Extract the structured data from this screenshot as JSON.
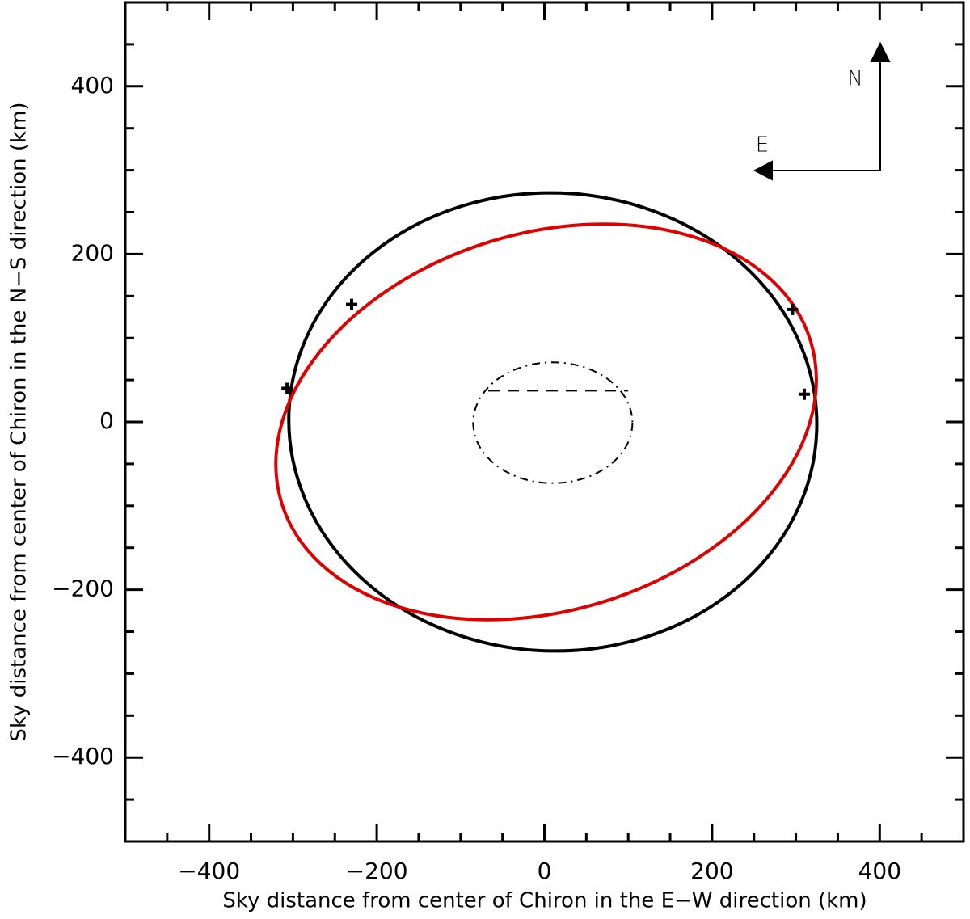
{
  "chart_data": {
    "type": "ellipse",
    "xlabel": "Sky distance from center of Chiron in the E−W direction (km)",
    "ylabel": "Sky distance from center of Chiron in the N−S direction (km)",
    "xlim": [
      -500,
      500
    ],
    "ylim": [
      -500,
      500
    ],
    "xticks": [
      {
        "value": -400,
        "label": "−400"
      },
      {
        "value": -200,
        "label": "−200"
      },
      0,
      200,
      400
    ],
    "yticks": [
      {
        "value": -400,
        "label": "−400"
      },
      {
        "value": -200,
        "label": "−200"
      },
      0,
      200,
      400
    ],
    "xminorticks": [
      -450,
      -350,
      -300,
      -250,
      -150,
      -100,
      -50,
      50,
      100,
      150,
      250,
      300,
      350,
      450
    ],
    "yminorticks": [
      -450,
      -350,
      -300,
      -250,
      -150,
      -100,
      -50,
      50,
      100,
      150,
      250,
      300,
      350,
      450
    ],
    "ellipses": [
      {
        "color": "#000000",
        "style": "solid",
        "center": [
          10,
          0
        ],
        "semi_axes": [
          315,
          273
        ],
        "angle": -2
      },
      {
        "color": "#e00000",
        "style": "solid",
        "center": [
          2,
          0
        ],
        "semi_axes": [
          330,
          225
        ],
        "angle": 17
      },
      {
        "color": "#000000",
        "style": "dashdot",
        "center": [
          10,
          -1
        ],
        "semi_axes": [
          95,
          72
        ],
        "angle": 0
      }
    ],
    "segments": [
      {
        "color": "#000000",
        "style": "dashed",
        "x": [
          -67,
          100
        ],
        "y": [
          37,
          37
        ]
      }
    ],
    "points": {
      "x": [
        -307,
        -230,
        296,
        310
      ],
      "y": [
        40,
        140,
        134,
        33
      ],
      "color": "#000000"
    },
    "annotations": [
      "N",
      "E"
    ]
  }
}
